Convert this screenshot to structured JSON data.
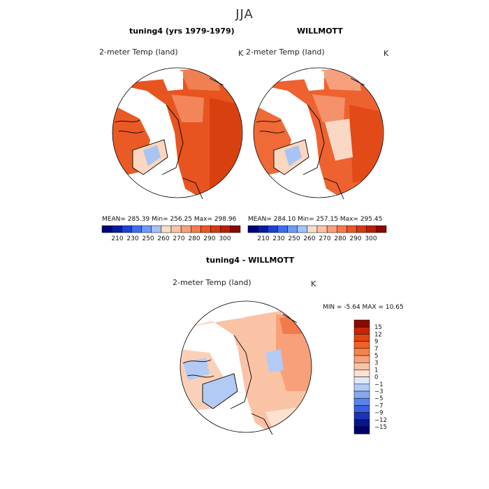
{
  "season": "JJA",
  "panels": [
    {
      "title": "tuning4 (yrs 1979-1979)",
      "variable": "2-meter Temp (land)",
      "units": "K",
      "stats_text": "MEAN=  285.39   Min=  256.25   Max=  298.96"
    },
    {
      "title": "WILLMOTT",
      "variable": "2-meter Temp (land)",
      "units": "K",
      "stats_text": "MEAN=  284.10   Min=  257.15   Max=  295.45"
    },
    {
      "title": "tuning4 - WILLMOTT",
      "variable": "2-meter Temp (land)",
      "units": "K",
      "stats_text": "MIN =   -5.64  MAX =   10.65"
    }
  ],
  "abs_colorbar": {
    "tick_labels": [
      "210",
      "230",
      "250",
      "260",
      "270",
      "280",
      "290",
      "300"
    ],
    "colors": [
      "#00007a",
      "#0a1aa0",
      "#1f3fd0",
      "#3f6cf0",
      "#6f9af5",
      "#a3c2f5",
      "#f7dcc7",
      "#f9c4a6",
      "#f8a07a",
      "#f57a50",
      "#ee5522",
      "#d93810",
      "#b81f06",
      "#8a0a02"
    ]
  },
  "diff_colorbar": {
    "tick_labels": [
      "15",
      "12",
      "9",
      "7",
      "5",
      "3",
      "1",
      "0",
      "−1",
      "−3",
      "−5",
      "−7",
      "−9",
      "−12",
      "−15"
    ],
    "colors": [
      "#8a0a02",
      "#c82406",
      "#e24612",
      "#f26226",
      "#f7834c",
      "#f9a27a",
      "#fbc3a6",
      "#fde2d2",
      "#dfe9f9",
      "#b2cbf4",
      "#86a8ee",
      "#5b84e8",
      "#3a5fe0",
      "#1c33b8",
      "#06158a",
      "#00006a"
    ]
  },
  "chart_data": [
    {
      "type": "heatmap",
      "title": "tuning4 (yrs 1979-1979)",
      "variable": "2-meter Temp (land)",
      "units": "K",
      "mean": 285.39,
      "min": 256.25,
      "max": 298.96,
      "projection": "north polar stereographic",
      "color_levels": [
        210,
        230,
        250,
        260,
        270,
        280,
        290,
        300
      ]
    },
    {
      "type": "heatmap",
      "title": "WILLMOTT",
      "variable": "2-meter Temp (land)",
      "units": "K",
      "mean": 284.1,
      "min": 257.15,
      "max": 295.45,
      "projection": "north polar stereographic",
      "color_levels": [
        210,
        230,
        250,
        260,
        270,
        280,
        290,
        300
      ]
    },
    {
      "type": "heatmap",
      "title": "tuning4 - WILLMOTT",
      "variable": "2-meter Temp (land)",
      "units": "K",
      "min": -5.64,
      "max": 10.65,
      "projection": "north polar stereographic",
      "color_levels": [
        -15,
        -12,
        -9,
        -7,
        -5,
        -3,
        -1,
        0,
        1,
        3,
        5,
        7,
        9,
        12,
        15
      ]
    }
  ]
}
